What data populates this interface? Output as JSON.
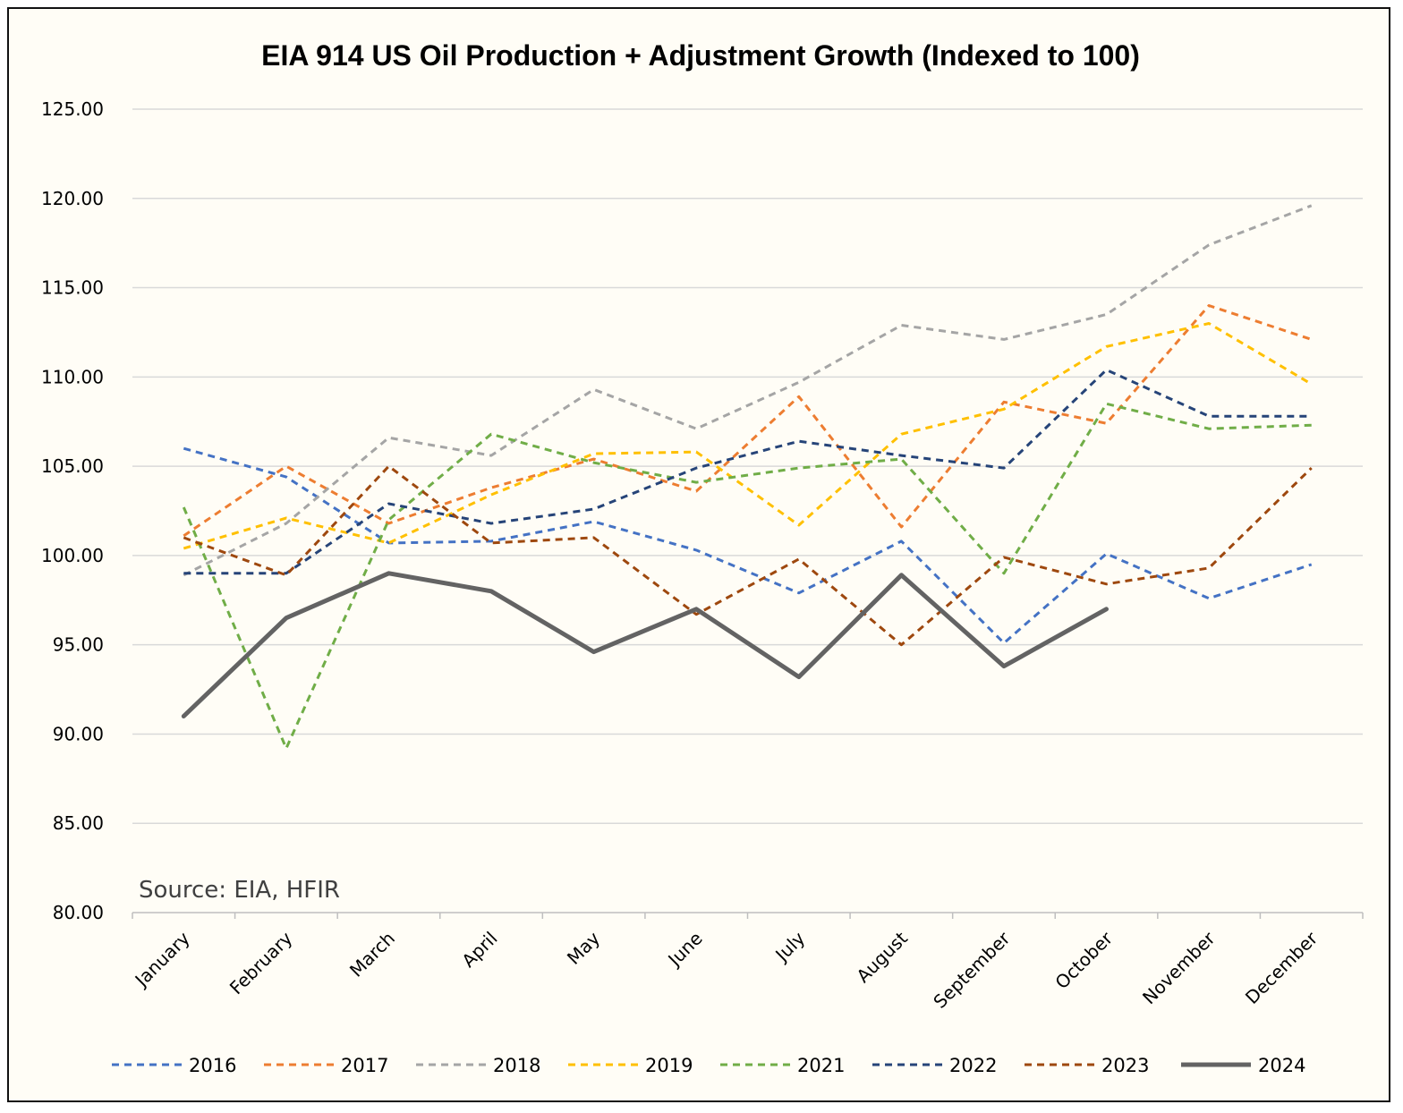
{
  "chart_data": {
    "type": "line",
    "title": "EIA 914 US Oil Production + Adjustment Growth (Indexed to 100)",
    "annotation": "Source: EIA, HFIR",
    "xlabel": "",
    "ylabel": "",
    "categories": [
      "January",
      "February",
      "March",
      "April",
      "May",
      "June",
      "July",
      "August",
      "September",
      "October",
      "November",
      "December"
    ],
    "ylim": [
      80,
      125
    ],
    "yticks": [
      "80.00",
      "85.00",
      "90.00",
      "95.00",
      "100.00",
      "105.00",
      "110.00",
      "115.00",
      "120.00",
      "125.00"
    ],
    "grid": "horizontal",
    "legend_position": "bottom",
    "series": [
      {
        "name": "2016",
        "color": "#4472c4",
        "style": "dashed",
        "values": [
          106.0,
          104.4,
          100.7,
          100.8,
          101.9,
          100.3,
          97.9,
          100.8,
          95.1,
          100.1,
          97.6,
          99.5
        ]
      },
      {
        "name": "2017",
        "color": "#ed7d31",
        "style": "dashed",
        "values": [
          101.1,
          105.0,
          101.8,
          103.8,
          105.4,
          103.6,
          108.9,
          101.6,
          108.6,
          107.4,
          114.0,
          112.1
        ]
      },
      {
        "name": "2018",
        "color": "#a5a5a5",
        "style": "dashed",
        "values": [
          98.9,
          101.8,
          106.6,
          105.6,
          109.3,
          107.1,
          109.7,
          112.9,
          112.1,
          113.5,
          117.4,
          119.6
        ]
      },
      {
        "name": "2019",
        "color": "#ffc000",
        "style": "dashed",
        "values": [
          100.4,
          102.1,
          100.7,
          103.4,
          105.7,
          105.8,
          101.7,
          106.8,
          108.2,
          111.7,
          113.0,
          109.6
        ]
      },
      {
        "name": "2021",
        "color": "#70ad47",
        "style": "dashed",
        "values": [
          102.7,
          89.2,
          102.0,
          106.8,
          105.2,
          104.1,
          104.9,
          105.4,
          99.0,
          108.5,
          107.1,
          107.3
        ]
      },
      {
        "name": "2022",
        "color": "#264478",
        "style": "dashed",
        "values": [
          99.0,
          99.0,
          102.9,
          101.8,
          102.6,
          104.9,
          106.4,
          105.6,
          104.9,
          110.4,
          107.8,
          107.8
        ]
      },
      {
        "name": "2023",
        "color": "#9e480e",
        "style": "dashed",
        "values": [
          101.0,
          98.9,
          105.0,
          100.7,
          101.0,
          96.7,
          99.8,
          95.0,
          99.9,
          98.4,
          99.3,
          104.9
        ]
      },
      {
        "name": "2024",
        "color": "#636363",
        "style": "solid",
        "values": [
          91.0,
          96.5,
          99.0,
          98.0,
          94.6,
          97.0,
          93.2,
          98.9,
          93.8,
          97.0,
          null,
          null
        ]
      }
    ]
  }
}
